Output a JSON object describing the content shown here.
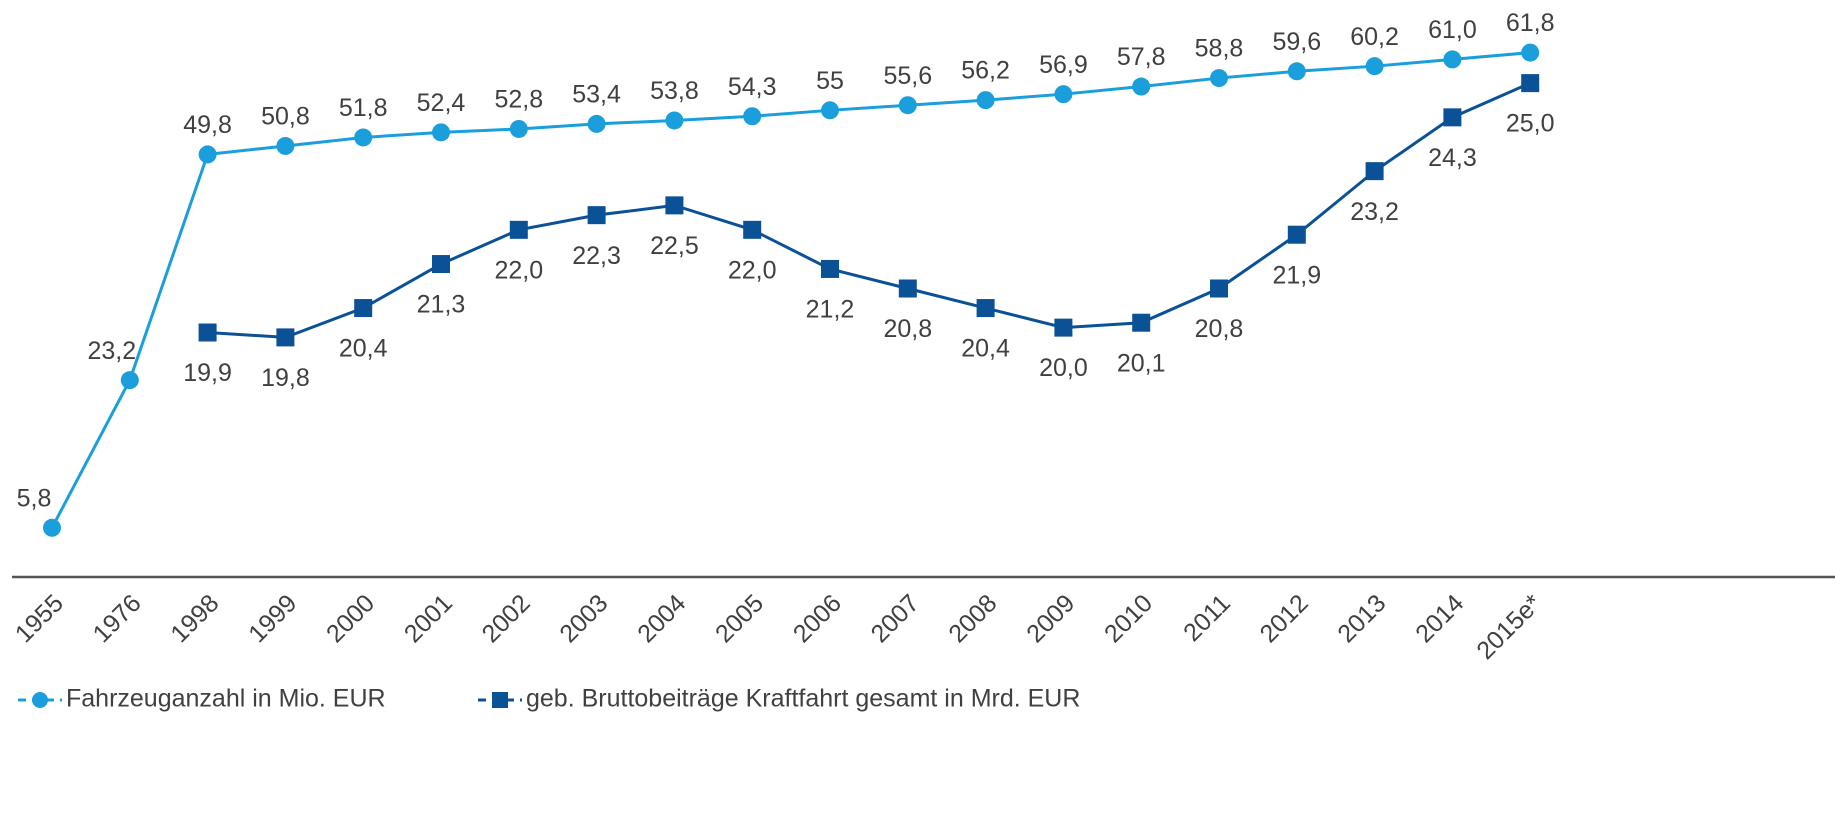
{
  "chart_data": {
    "type": "line",
    "categories": [
      "1955",
      "1976",
      "1998",
      "1999",
      "2000",
      "2001",
      "2002",
      "2003",
      "2004",
      "2005",
      "2006",
      "2007",
      "2008",
      "2009",
      "2010",
      "2011",
      "2012",
      "2013",
      "2014",
      "2015e*"
    ],
    "ylim": [
      0,
      68
    ],
    "y2lim": [
      14.9,
      26.7
    ],
    "series": [
      {
        "name": "Fahrzeuganzahl in Mio. EUR",
        "color": "#1a9fdc",
        "marker": "circle",
        "values": [
          5.8,
          23.2,
          49.8,
          50.8,
          51.8,
          52.4,
          52.8,
          53.4,
          53.8,
          54.3,
          55,
          55.6,
          56.2,
          56.9,
          57.8,
          58.8,
          59.6,
          60.2,
          61.0,
          61.8
        ],
        "value_labels": [
          "5,8",
          "23,2",
          "49,8",
          "50,8",
          "51,8",
          "52,4",
          "52,8",
          "53,4",
          "53,8",
          "54,3",
          "55",
          "55,6",
          "56,2",
          "56,9",
          "57,8",
          "58,8",
          "59,6",
          "60,2",
          "61,0",
          "61,8"
        ]
      },
      {
        "name": "geb. Bruttobeiträge Kraftfahrt gesamt in Mrd. EUR",
        "color": "#0a5196",
        "marker": "square",
        "axis": "y2",
        "values": [
          null,
          null,
          19.9,
          19.8,
          20.4,
          21.3,
          22.0,
          22.3,
          22.5,
          22.0,
          21.2,
          20.8,
          20.4,
          20.0,
          20.1,
          20.8,
          21.9,
          23.2,
          24.3,
          25.0
        ],
        "value_labels": [
          null,
          null,
          "19,9",
          "19,8",
          "20,4",
          "21,3",
          "22,0",
          "22,3",
          "22,5",
          "22,0",
          "21,2",
          "20,8",
          "20,4",
          "20,0",
          "20,1",
          "20,8",
          "21,9",
          "23,2",
          "24,3",
          "25,0"
        ]
      }
    ]
  }
}
